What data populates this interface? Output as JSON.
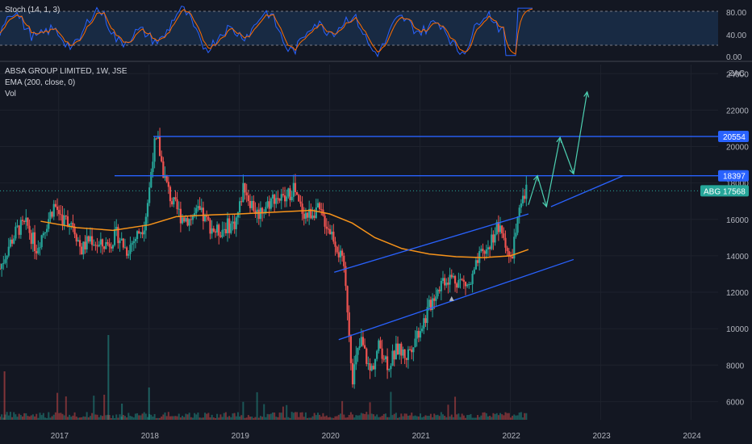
{
  "stoch_pane": {
    "label": "Stoch (14, 1, 3)",
    "ticks": [
      "80.00",
      "40.00",
      "0.00"
    ],
    "band_upper": 80,
    "band_lower": 20,
    "k_color": "#2962ff",
    "d_color": "#ff6d00",
    "band_fill": "#1e3a5f"
  },
  "main_pane": {
    "symbol": "ABSA GROUP LIMITED, 1W, JSE",
    "ema_label": "EMA (200, close, 0)",
    "vol_label": "Vol",
    "currency": "ZAC"
  },
  "price_tags": [
    {
      "label": "20554",
      "value": 20554,
      "bg": "#2962ff"
    },
    {
      "label": "18397",
      "value": 18397,
      "bg": "#2962ff"
    }
  ],
  "last_price": {
    "ticker": "ABG",
    "value_label": "17568",
    "value": 17568,
    "bg": "#26a69a"
  },
  "colors": {
    "up": "#26a69a",
    "down": "#ef5350",
    "ema": "#f7931a",
    "trendline": "#2962ff",
    "projection": "#4dd0b1"
  },
  "chart_data": {
    "type": "candlestick",
    "title": "ABSA GROUP LIMITED, 1W, JSE",
    "ylabel": "ZAC",
    "x_ticks": [
      "2017",
      "2018",
      "2019",
      "2020",
      "2021",
      "2022",
      "2023",
      "2024"
    ],
    "y_ticks": [
      6000,
      8000,
      10000,
      12000,
      14000,
      16000,
      18000,
      20000,
      22000,
      24000
    ],
    "ylim": [
      5000,
      24500
    ],
    "xlim": [
      2016.35,
      2024.3
    ],
    "price_path": [
      [
        2016.35,
        13300
      ],
      [
        2016.45,
        14600
      ],
      [
        2016.55,
        15500
      ],
      [
        2016.65,
        15700
      ],
      [
        2016.75,
        14400
      ],
      [
        2016.85,
        15600
      ],
      [
        2016.95,
        16800
      ],
      [
        2017.05,
        16000
      ],
      [
        2017.15,
        15900
      ],
      [
        2017.25,
        14300
      ],
      [
        2017.35,
        15000
      ],
      [
        2017.45,
        14500
      ],
      [
        2017.55,
        14700
      ],
      [
        2017.65,
        15200
      ],
      [
        2017.75,
        14300
      ],
      [
        2017.85,
        15000
      ],
      [
        2017.95,
        15800
      ],
      [
        2018.0,
        17500
      ],
      [
        2018.05,
        20000
      ],
      [
        2018.1,
        20200
      ],
      [
        2018.15,
        18800
      ],
      [
        2018.2,
        17800
      ],
      [
        2018.25,
        17000
      ],
      [
        2018.35,
        16200
      ],
      [
        2018.45,
        16000
      ],
      [
        2018.55,
        16400
      ],
      [
        2018.65,
        15800
      ],
      [
        2018.75,
        15300
      ],
      [
        2018.85,
        15600
      ],
      [
        2018.95,
        15800
      ],
      [
        2019.0,
        16600
      ],
      [
        2019.05,
        18000
      ],
      [
        2019.1,
        17200
      ],
      [
        2019.2,
        16300
      ],
      [
        2019.3,
        16800
      ],
      [
        2019.4,
        17300
      ],
      [
        2019.5,
        17000
      ],
      [
        2019.6,
        17800
      ],
      [
        2019.65,
        16800
      ],
      [
        2019.75,
        16200
      ],
      [
        2019.85,
        16600
      ],
      [
        2019.95,
        15900
      ],
      [
        2020.05,
        15000
      ],
      [
        2020.15,
        13400
      ],
      [
        2020.2,
        11000
      ],
      [
        2020.25,
        7300
      ],
      [
        2020.3,
        8500
      ],
      [
        2020.35,
        9300
      ],
      [
        2020.45,
        7600
      ],
      [
        2020.55,
        9100
      ],
      [
        2020.65,
        8000
      ],
      [
        2020.75,
        8900
      ],
      [
        2020.85,
        8500
      ],
      [
        2020.95,
        9600
      ],
      [
        2021.05,
        10500
      ],
      [
        2021.15,
        11800
      ],
      [
        2021.25,
        12700
      ],
      [
        2021.35,
        12800
      ],
      [
        2021.45,
        12600
      ],
      [
        2021.55,
        12300
      ],
      [
        2021.65,
        13800
      ],
      [
        2021.75,
        14400
      ],
      [
        2021.85,
        15600
      ],
      [
        2021.95,
        14800
      ],
      [
        2022.0,
        13500
      ],
      [
        2022.05,
        15100
      ],
      [
        2022.12,
        16700
      ],
      [
        2022.18,
        17568
      ]
    ],
    "ema200": [
      [
        2016.8,
        15900
      ],
      [
        2017.2,
        15550
      ],
      [
        2017.6,
        15400
      ],
      [
        2018.0,
        15700
      ],
      [
        2018.3,
        16150
      ],
      [
        2018.7,
        16250
      ],
      [
        2019.0,
        16300
      ],
      [
        2019.4,
        16400
      ],
      [
        2019.8,
        16500
      ],
      [
        2020.0,
        16300
      ],
      [
        2020.25,
        15800
      ],
      [
        2020.5,
        15000
      ],
      [
        2020.8,
        14400
      ],
      [
        2021.1,
        14100
      ],
      [
        2021.4,
        13950
      ],
      [
        2021.7,
        13900
      ],
      [
        2022.0,
        14000
      ],
      [
        2022.2,
        14350
      ]
    ],
    "horizontal_levels": [
      20554,
      18397
    ],
    "channel": [
      {
        "from": [
          2020.05,
          13100
        ],
        "to": [
          2022.2,
          16300
        ]
      },
      {
        "from": [
          2020.1,
          9400
        ],
        "to": [
          2022.7,
          13800
        ]
      }
    ],
    "rising_support": {
      "from": [
        2022.45,
        16700
      ],
      "to": [
        2023.25,
        18397
      ]
    },
    "projection_path": [
      [
        2022.2,
        16800
      ],
      [
        2022.3,
        18400
      ],
      [
        2022.4,
        16700
      ],
      [
        2022.55,
        20500
      ],
      [
        2022.7,
        18500
      ],
      [
        2022.85,
        23000
      ]
    ]
  }
}
